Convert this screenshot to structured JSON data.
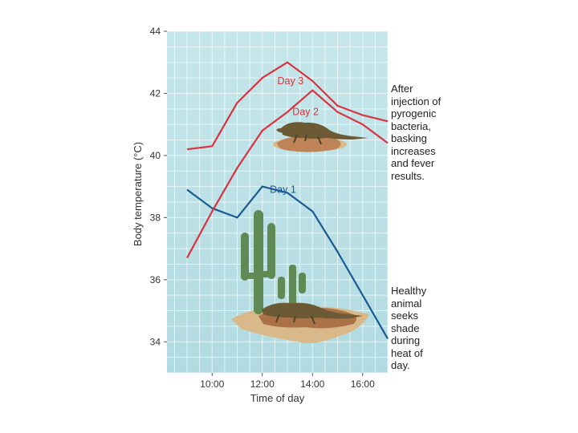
{
  "chart_data": {
    "type": "line",
    "xlabel": "Time of day",
    "ylabel": "Body temperature (°C)",
    "xlim": [
      8.5,
      17
    ],
    "ylim": [
      33,
      44
    ],
    "x_ticks": [
      10,
      12,
      14,
      16
    ],
    "x_tick_labels": [
      "10:00",
      "12:00",
      "14:00",
      "16:00"
    ],
    "y_ticks": [
      34,
      36,
      38,
      40,
      42,
      44
    ],
    "y_tick_labels": [
      "34",
      "36",
      "38",
      "40",
      "42",
      "44"
    ],
    "grid": true,
    "series": [
      {
        "name": "Day 1",
        "color": "#1a5a92",
        "x": [
          9,
          10,
          11,
          12,
          13,
          14,
          15,
          16,
          17
        ],
        "y": [
          38.9,
          38.3,
          38.0,
          39.0,
          38.8,
          38.2,
          36.9,
          35.5,
          34.1
        ]
      },
      {
        "name": "Day 2",
        "color": "#d8343f",
        "x": [
          9,
          10,
          11,
          12,
          13,
          14,
          15,
          16,
          17
        ],
        "y": [
          36.7,
          38.2,
          39.6,
          40.8,
          41.4,
          42.1,
          41.4,
          41.0,
          40.4
        ]
      },
      {
        "name": "Day 3",
        "color": "#d8343f",
        "x": [
          9,
          10,
          11,
          12,
          13,
          14,
          15,
          16,
          17
        ],
        "y": [
          40.2,
          40.3,
          41.7,
          42.5,
          43.0,
          42.4,
          41.6,
          41.3,
          41.1
        ]
      }
    ],
    "annotations": {
      "fever": [
        "After",
        "injection of",
        "pyrogenic",
        "bacteria,",
        "basking",
        "increases",
        "and fever",
        "results."
      ],
      "healthy": [
        "Healthy",
        "animal",
        "seeks",
        "shade",
        "during",
        "heat of",
        "day."
      ]
    },
    "colors": {
      "plot_bg_top": "#c5e6ea",
      "plot_bg_bottom": "#b1dbe1",
      "grid": "#ffffff",
      "cactus": "#5f8a55",
      "lizard": "#6b5a34",
      "sand": "#d9b88a"
    }
  }
}
